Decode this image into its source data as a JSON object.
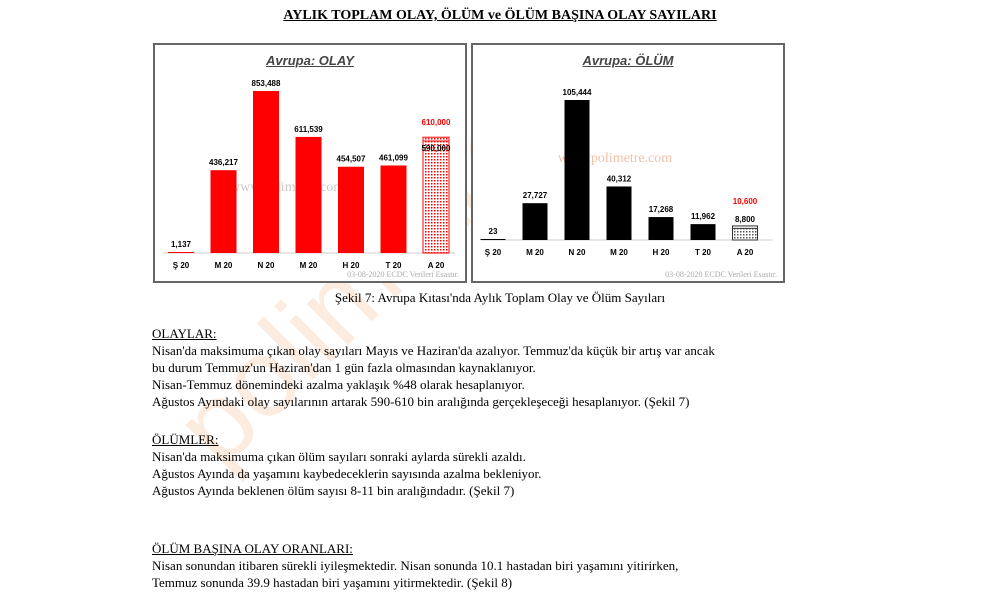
{
  "title": "AYLIK TOPLAM OLAY, ÖLÜM ve ÖLÜM BAŞINA OLAY SAYILARI",
  "watermark": "polimetre",
  "chart_data": [
    {
      "type": "bar",
      "title": "Avrupa: OLAY",
      "categories": [
        "Ş 20",
        "M 20",
        "N 20",
        "M 20",
        "H 20",
        "T 20",
        "A 20"
      ],
      "values": [
        1137,
        436217,
        853488,
        611539,
        454507,
        461099,
        590000
      ],
      "labels": [
        "1,137",
        "436,217",
        "853,488",
        "611,539",
        "454,507",
        "461,099",
        "590,000"
      ],
      "forecast_high": {
        "category": "A 20",
        "value": 610000,
        "label": "610,000"
      },
      "color": "#ff0000",
      "forecast_color": "#ff0000",
      "watermark": "www.polimetre.com",
      "source": "03-08-2020  ECDC Verileri  Esastır."
    },
    {
      "type": "bar",
      "title": "Avrupa: ÖLÜM",
      "categories": [
        "Ş 20",
        "M 20",
        "N 20",
        "M 20",
        "H 20",
        "T 20",
        "A 20"
      ],
      "values": [
        23,
        27727,
        105444,
        40312,
        17268,
        11962,
        8800
      ],
      "labels": [
        "23",
        "27,727",
        "105,444",
        "40,312",
        "17,268",
        "11,962",
        "8,800"
      ],
      "forecast_high": {
        "category": "A 20",
        "value": 10600,
        "label": "10,600"
      },
      "color": "#000000",
      "forecast_color": "#ff0000",
      "watermark": "www.polimetre.com",
      "source": "03-08-2020  ECDC Verileri  Esastır."
    }
  ],
  "caption": "Şekil 7: Avrupa Kıtası'nda Aylık Toplam Olay ve Ölüm Sayıları",
  "sections": [
    {
      "heading": "OLAYLAR:",
      "lines": [
        "Nisan'da maksimuma çıkan olay sayıları Mayıs ve Haziran'da azalıyor. Temmuz'da küçük bir artış var ancak",
        "bu durum Temmuz'un Haziran'dan 1 gün fazla olmasından kaynaklanıyor.",
        "Nisan-Temmuz dönemindeki azalma yaklaşık %48 olarak hesaplanıyor.",
        "Ağustos Ayındaki olay sayılarının artarak 590-610 bin aralığında gerçekleşeceği hesaplanıyor. (Şekil 7)"
      ]
    },
    {
      "heading": "ÖLÜMLER:",
      "lines": [
        "Nisan'da maksimuma çıkan ölüm sayıları sonraki aylarda sürekli azaldı.",
        "Ağustos Ayında da yaşamını kaybedeceklerin sayısında azalma bekleniyor.",
        "Ağustos Ayında beklenen ölüm sayısı 8-11 bin aralığındadır. (Şekil 7)"
      ]
    },
    {
      "heading": "ÖLÜM BAŞINA OLAY ORANLARI:",
      "lines": [
        "Nisan sonundan itibaren sürekli iyileşmektedir. Nisan sonunda 10.1 hastadan biri yaşamını yitirirken,",
        "Temmuz sonunda 39.9 hastadan biri yaşamını yitirmektedir. (Şekil 8)"
      ]
    }
  ]
}
